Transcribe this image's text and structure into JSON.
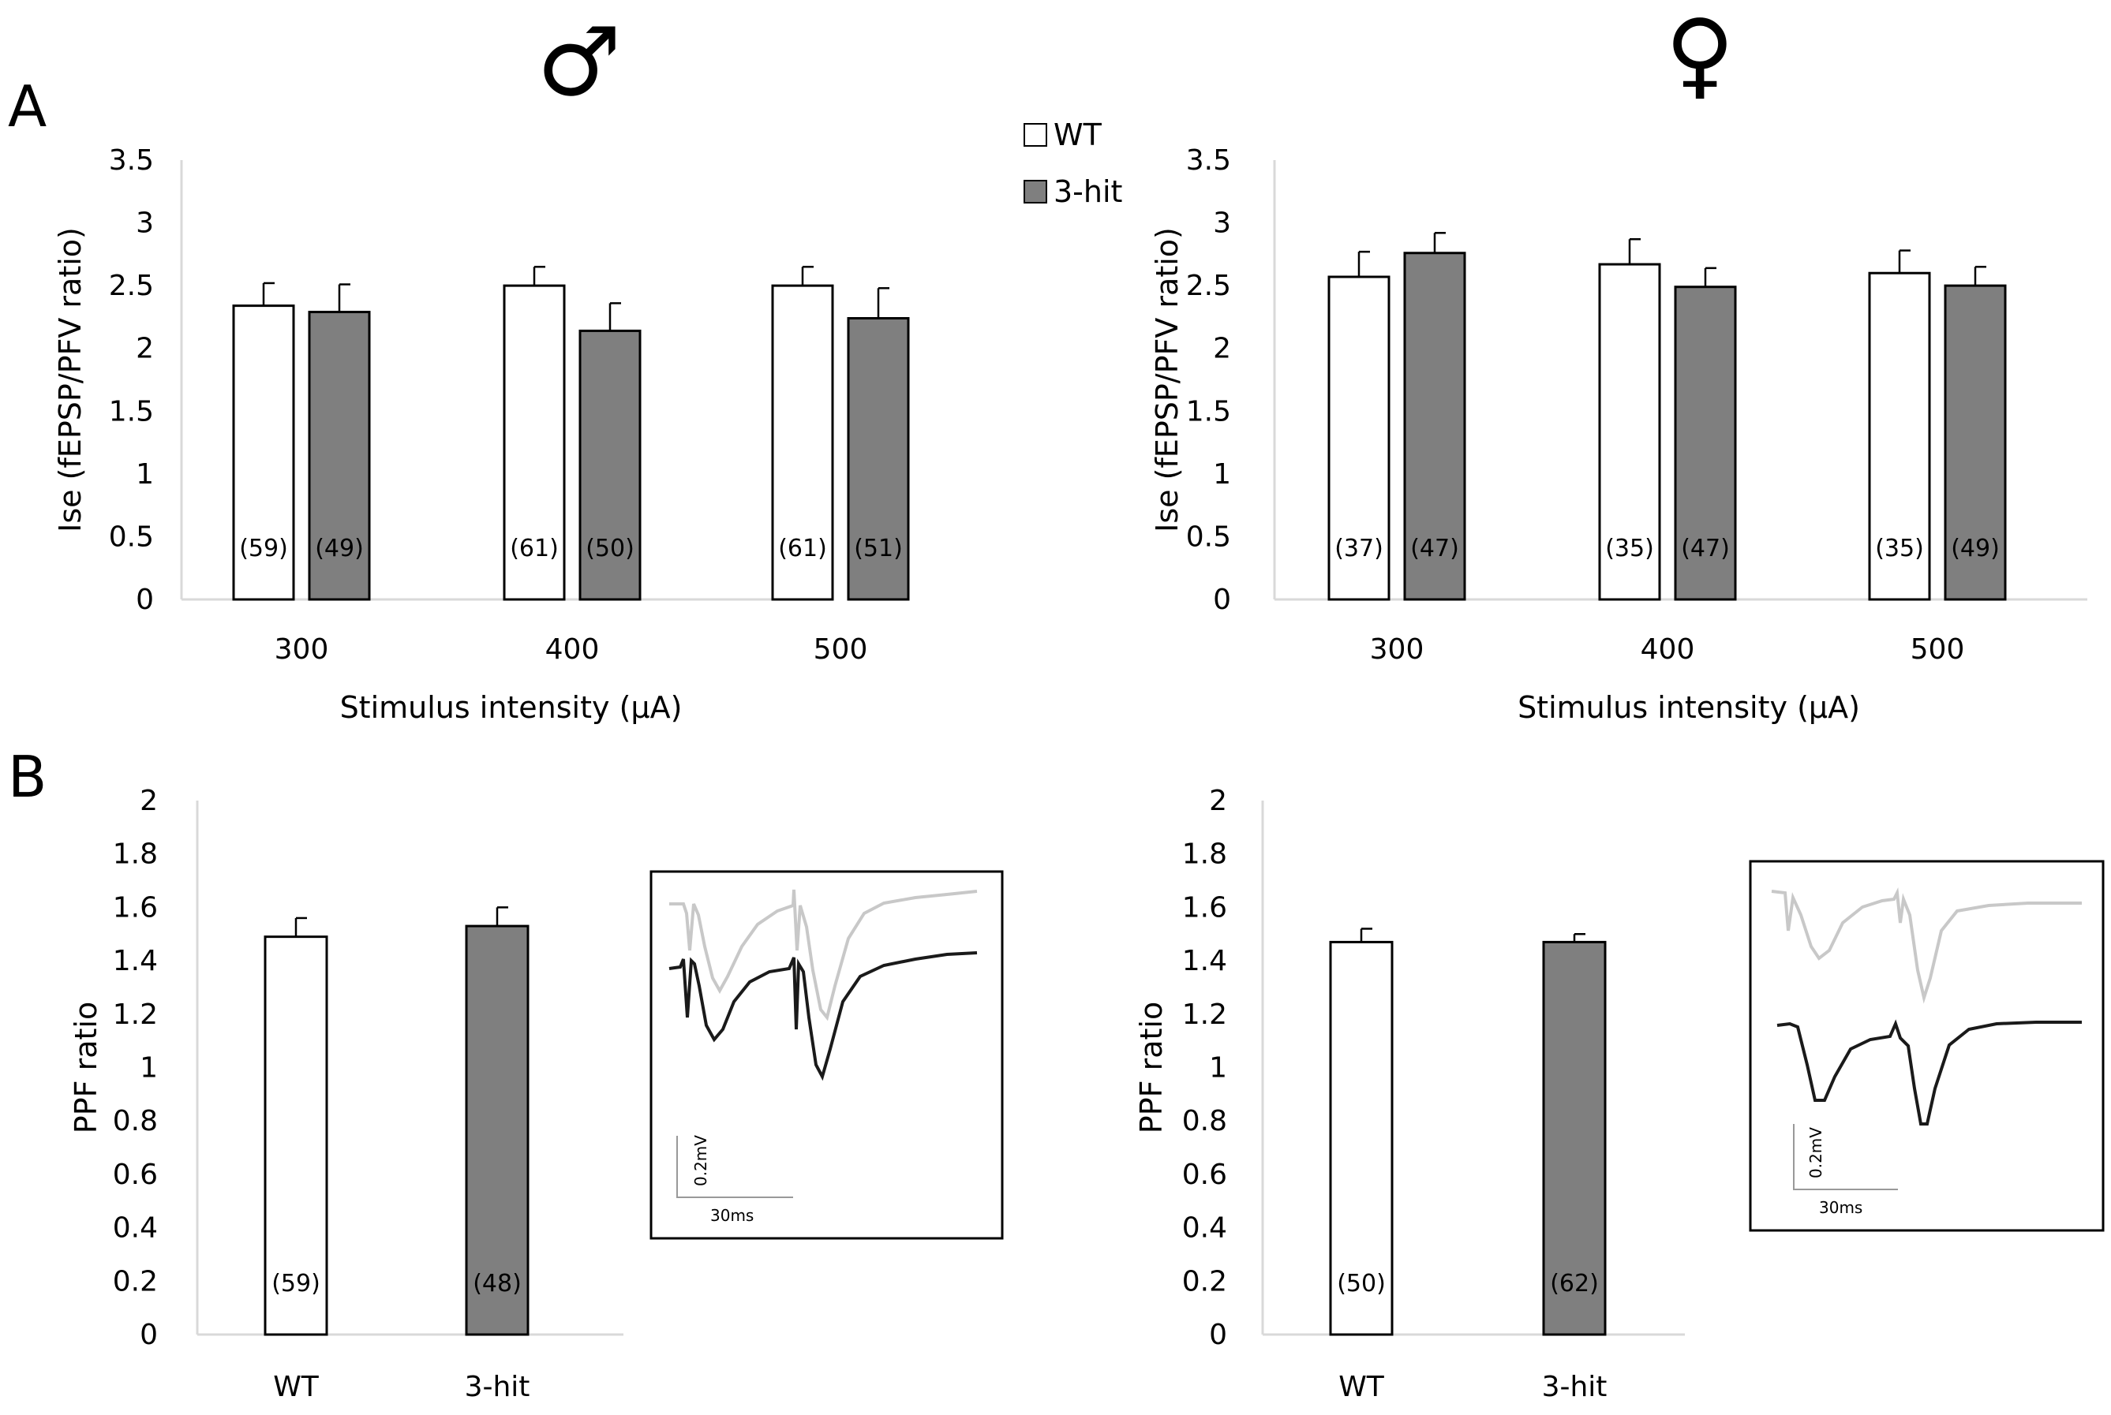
{
  "panel_labels": {
    "a": "A",
    "b": "B"
  },
  "sex_symbols": {
    "male": "♂",
    "female": "♀"
  },
  "legend": {
    "wt": "WT",
    "hit3": "3-hit"
  },
  "colors": {
    "wt_fill": "#ffffff",
    "hit3_fill": "#7f7f7f",
    "axis": "#d9d9d9",
    "trace_wt": "#c8c8c8",
    "trace_hit": "#1a1a1a"
  },
  "inset": {
    "scale_v": "0.2mV",
    "scale_t": "30ms"
  },
  "chart_data": [
    {
      "id": "A-male",
      "type": "bar",
      "ylabel": "Ise (fEPSP/PFV ratio)",
      "xlabel": "Stimulus intensity (µA)",
      "ylim": [
        0,
        3.5
      ],
      "yticks": [
        "0",
        "0.5",
        "1",
        "1.5",
        "2",
        "2.5",
        "3",
        "3.5"
      ],
      "categories": [
        "300",
        "400",
        "500"
      ],
      "series": [
        {
          "name": "WT",
          "values": [
            2.34,
            2.5,
            2.5
          ],
          "errors": [
            0.18,
            0.15,
            0.15
          ],
          "n": [
            "(59)",
            "(61)",
            "(61)"
          ]
        },
        {
          "name": "3-hit",
          "values": [
            2.29,
            2.14,
            2.24
          ],
          "errors": [
            0.22,
            0.22,
            0.24
          ],
          "n": [
            "(49)",
            "(50)",
            "(51)"
          ]
        }
      ]
    },
    {
      "id": "A-female",
      "type": "bar",
      "ylabel": "Ise (fEPSP/PFV ratio)",
      "xlabel": "Stimulus intensity (µA)",
      "ylim": [
        0,
        3.5
      ],
      "yticks": [
        "0",
        "0.5",
        "1",
        "1.5",
        "2",
        "2.5",
        "3",
        "3.5"
      ],
      "categories": [
        "300",
        "400",
        "500"
      ],
      "series": [
        {
          "name": "WT",
          "values": [
            2.57,
            2.67,
            2.6
          ],
          "errors": [
            0.2,
            0.2,
            0.18
          ],
          "n": [
            "(37)",
            "(35)",
            "(35)"
          ]
        },
        {
          "name": "3-hit",
          "values": [
            2.76,
            2.49,
            2.5
          ],
          "errors": [
            0.16,
            0.15,
            0.15
          ],
          "n": [
            "(47)",
            "(47)",
            "(49)"
          ]
        }
      ]
    },
    {
      "id": "B-male",
      "type": "bar",
      "ylabel": "PPF ratio",
      "xlabel": "",
      "ylim": [
        0,
        2
      ],
      "yticks": [
        "0",
        "0.2",
        "0.4",
        "0.6",
        "0.8",
        "1",
        "1.2",
        "1.4",
        "1.6",
        "1.8",
        "2"
      ],
      "categories": [
        "WT",
        "3-hit"
      ],
      "values": [
        1.49,
        1.53
      ],
      "errors": [
        0.07,
        0.07
      ],
      "n": [
        "(59)",
        "(48)"
      ]
    },
    {
      "id": "B-female",
      "type": "bar",
      "ylabel": "PPF ratio",
      "xlabel": "",
      "ylim": [
        0,
        2
      ],
      "yticks": [
        "0",
        "0.2",
        "0.4",
        "0.6",
        "0.8",
        "1",
        "1.2",
        "1.4",
        "1.6",
        "1.8",
        "2"
      ],
      "categories": [
        "WT",
        "3-hit"
      ],
      "values": [
        1.47,
        1.47
      ],
      "errors": [
        0.05,
        0.03
      ],
      "n": [
        "(50)",
        "(62)"
      ]
    }
  ]
}
